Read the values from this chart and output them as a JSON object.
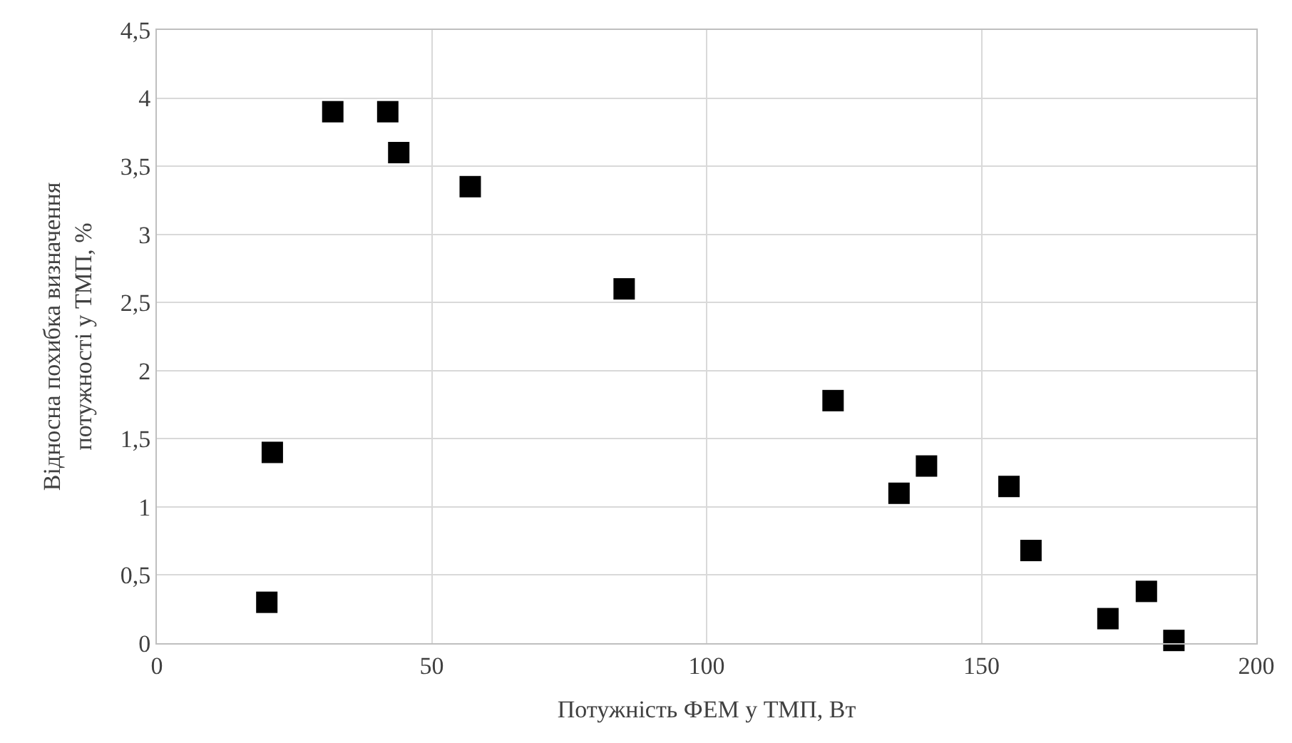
{
  "chart_data": {
    "type": "scatter",
    "xlabel": "Потужність ФЕМ у ТМП, Вт",
    "ylabel": "Відносна похибка визначення потужності у ТМП, %",
    "marker": "square",
    "grid": true,
    "x": [
      20,
      21,
      32,
      42,
      44,
      57,
      85,
      123,
      135,
      140,
      155,
      159,
      173,
      180,
      185
    ],
    "series": [
      {
        "color": "#000000",
        "values": [
          0.3,
          1.4,
          3.9,
          3.9,
          3.6,
          3.35,
          2.6,
          1.78,
          1.1,
          1.3,
          1.15,
          0.68,
          0.18,
          0.38,
          0.02
        ]
      }
    ],
    "xlim": [
      0,
      200
    ],
    "xticks": [
      0,
      50,
      100,
      150,
      200
    ],
    "ylim": [
      0,
      4.5
    ],
    "yticks": [
      0,
      {
        "value": 0.5,
        "label": "0,5"
      },
      1,
      {
        "value": 1.5,
        "label": "1,5"
      },
      2,
      {
        "value": 2.5,
        "label": "2,5"
      },
      3,
      {
        "value": 3.5,
        "label": "3,5"
      },
      4,
      {
        "value": 4.5,
        "label": "4,5"
      }
    ]
  }
}
